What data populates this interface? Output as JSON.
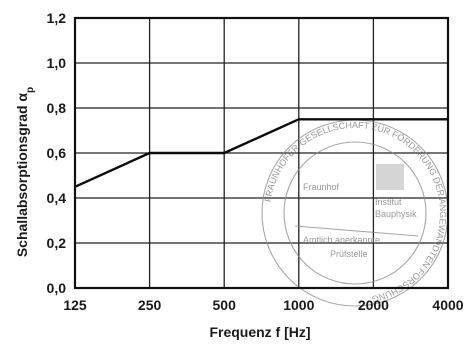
{
  "chart_data": {
    "type": "line",
    "x_scale": "log",
    "x_ticks": [
      125,
      250,
      500,
      1000,
      2000,
      4000
    ],
    "x_tick_labels": [
      "125",
      "250",
      "500",
      "1000",
      "2000",
      "4000"
    ],
    "xlabel": "Frequenz f [Hz]",
    "ylabel": "Schallabsorptionsgrad α",
    "ylabel_subscript": "p",
    "ylim": [
      0,
      1.2
    ],
    "y_ticks": [
      0.0,
      0.2,
      0.4,
      0.6,
      0.8,
      1.0,
      1.2
    ],
    "y_tick_labels": [
      "0,0",
      "0,2",
      "0,4",
      "0,6",
      "0,8",
      "1,0",
      "1,2"
    ],
    "grid": true,
    "series": [
      {
        "x": [
          125,
          250,
          500,
          1000,
          2000,
          4000
        ],
        "values": [
          0.45,
          0.6,
          0.6,
          0.75,
          0.75,
          0.75
        ],
        "color": "#0d0d0d"
      }
    ]
  },
  "stamp": {
    "outer_text": "FRAUNHOFER-GESELLSCHAFT ZUR FÖRDERUNG DER ANGEWANDTEN FORSCHUNG",
    "inner_lines": [
      "Fraunhof",
      "Institut",
      "Bauphysik",
      "Amtlich anerkannte",
      "Prüfstelle"
    ],
    "color": "#8a8a8a"
  }
}
